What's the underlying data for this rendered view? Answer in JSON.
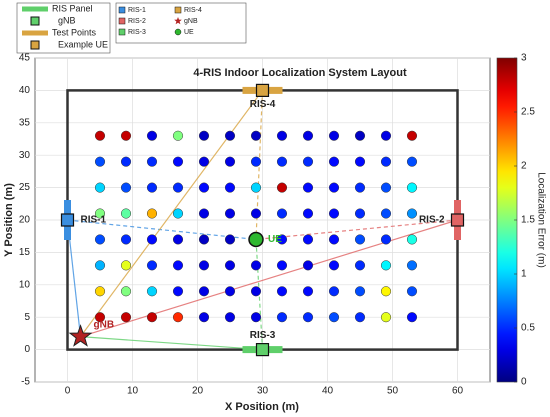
{
  "chart_data": {
    "type": "scatter",
    "title": "4-RIS Indoor Localization System Layout",
    "x_label": "X Position (m)",
    "y_label": "Y Position (m)",
    "xlim": [
      -5,
      65
    ],
    "ylim": [
      -5,
      45
    ],
    "xticks": [
      0,
      10,
      20,
      30,
      40,
      50,
      60
    ],
    "yticks": [
      -5,
      0,
      5,
      10,
      15,
      20,
      25,
      30,
      35,
      40,
      45
    ],
    "grid": true,
    "room": {
      "x": [
        0,
        60
      ],
      "y": [
        0,
        40
      ]
    },
    "points": {
      "x": [
        5,
        9,
        13,
        17,
        21,
        25,
        29,
        33,
        37,
        41,
        45,
        49,
        53,
        5,
        9,
        13,
        17,
        21,
        25,
        29,
        33,
        37,
        41,
        45,
        49,
        53,
        5,
        9,
        13,
        17,
        21,
        25,
        29,
        33,
        37,
        41,
        45,
        49,
        53,
        5,
        9,
        13,
        17,
        21,
        25,
        29,
        33,
        37,
        41,
        45,
        49,
        53,
        5,
        9,
        13,
        17,
        21,
        25,
        29,
        33,
        37,
        41,
        45,
        49,
        53,
        5,
        9,
        13,
        17,
        21,
        25,
        29,
        33,
        37,
        41,
        45,
        49,
        53,
        5,
        9,
        13,
        17,
        21,
        25,
        29,
        33,
        37,
        41,
        45,
        49,
        53,
        5,
        9,
        13,
        17,
        21,
        25,
        29,
        33,
        37,
        41,
        45,
        49,
        53
      ],
      "y": [
        33,
        33,
        33,
        33,
        33,
        33,
        33,
        33,
        33,
        33,
        33,
        33,
        33,
        29,
        29,
        29,
        29,
        29,
        29,
        29,
        29,
        29,
        29,
        29,
        29,
        29,
        25,
        25,
        25,
        25,
        25,
        25,
        25,
        25,
        25,
        25,
        25,
        25,
        25,
        21,
        21,
        21,
        21,
        21,
        21,
        21,
        21,
        21,
        21,
        21,
        21,
        21,
        17,
        17,
        17,
        17,
        17,
        17,
        17,
        17,
        17,
        17,
        17,
        17,
        17,
        13,
        13,
        13,
        13,
        13,
        13,
        13,
        13,
        13,
        13,
        13,
        13,
        13,
        9,
        9,
        9,
        9,
        9,
        9,
        9,
        9,
        9,
        9,
        9,
        9,
        9,
        5,
        5,
        5,
        5,
        5,
        5,
        5,
        5,
        5,
        5,
        5,
        5,
        5
      ],
      "error": [
        2.8,
        2.8,
        0.3,
        1.5,
        0.2,
        0.2,
        0.2,
        0.3,
        0.3,
        0.3,
        0.2,
        0.3,
        2.8,
        0.6,
        0.5,
        0.5,
        0.4,
        0.3,
        0.3,
        0.5,
        0.5,
        0.5,
        0.4,
        0.4,
        0.5,
        0.6,
        1.0,
        0.6,
        0.5,
        0.5,
        0.4,
        0.4,
        1.0,
        2.8,
        0.4,
        0.4,
        0.5,
        0.6,
        1.1,
        1.5,
        1.4,
        2.1,
        1.0,
        0.3,
        0.3,
        0.3,
        0.5,
        0.4,
        0.4,
        0.5,
        0.6,
        0.8,
        0.6,
        0.5,
        0.4,
        0.3,
        0.2,
        0.2,
        0.3,
        0.4,
        0.4,
        0.4,
        0.6,
        0.5,
        1.2,
        0.9,
        1.8,
        0.5,
        0.4,
        0.3,
        0.3,
        0.3,
        0.4,
        0.3,
        0.4,
        0.5,
        1.1,
        0.7,
        2.0,
        1.5,
        1.0,
        0.4,
        0.3,
        0.3,
        0.3,
        0.4,
        0.4,
        0.5,
        0.6,
        1.9,
        0.6,
        2.8,
        2.8,
        2.8,
        2.5,
        0.3,
        0.3,
        0.3,
        0.5,
        0.5,
        0.6,
        0.5,
        1.8,
        0.4
      ]
    },
    "ris": [
      {
        "name": "RIS-1",
        "x": 0,
        "y": 20,
        "color": "#3a8ee0",
        "orientation": "vertical"
      },
      {
        "name": "RIS-2",
        "x": 60,
        "y": 20,
        "color": "#e06464",
        "orientation": "vertical"
      },
      {
        "name": "RIS-3",
        "x": 30,
        "y": 0,
        "color": "#5fcf6a",
        "orientation": "horizontal"
      },
      {
        "name": "RIS-4",
        "x": 30,
        "y": 40,
        "color": "#d9a441",
        "orientation": "horizontal"
      }
    ],
    "gnb": {
      "label": "gNB",
      "x": 2,
      "y": 2,
      "color": "#b22222"
    },
    "ue": {
      "label": "UE",
      "x": 29,
      "y": 17,
      "color": "#2eb82e"
    },
    "colorbar": {
      "label": "Localization Error (m)",
      "lim": [
        0,
        3
      ],
      "ticks": [
        0,
        0.5,
        1,
        1.5,
        2,
        2.5,
        3
      ],
      "colormap": "jet"
    },
    "legend_main": [
      "RIS Panel",
      "gNB",
      "Test Points",
      "Example UE"
    ]
  }
}
